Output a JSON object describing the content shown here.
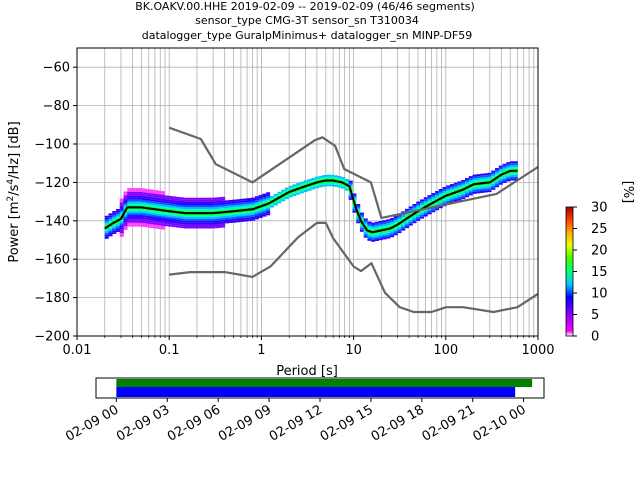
{
  "title": {
    "line1": "BK.OAKV.00.HHE   2019-02-09 -- 2019-02-09  (46/46 segments)",
    "line2": "sensor_type CMG-3T sensor_sn T310034",
    "line3": "datalogger_type GuralpMinimus+ datalogger_sn MINP-DF59"
  },
  "colors": {
    "mean": "#000000",
    "noise_models": "#666666",
    "grid": "#b0b0b0",
    "coverage_all": "#008000",
    "coverage_used": "#0000ff"
  },
  "chart_data": [
    {
      "type": "heatmap",
      "subtype": "probabilistic power spectral density",
      "xlabel": "Period [s]",
      "ylabel": "Power [m^2/s^4/Hz] [dB]",
      "xscale": "log",
      "xlim": [
        0.01,
        1000
      ],
      "ylim": [
        -200,
        -50
      ],
      "x_ticks": [
        0.01,
        0.1,
        1,
        10,
        100,
        1000
      ],
      "x_tick_labels": [
        "0.01",
        "0.1",
        "1",
        "10",
        "100",
        "1000"
      ],
      "y_ticks": [
        -200,
        -180,
        -160,
        -140,
        -120,
        -100,
        -80,
        -60
      ],
      "y_tick_labels": [
        "−200",
        "−180",
        "−160",
        "−140",
        "−120",
        "−100",
        "−80",
        "−60"
      ],
      "grid": true,
      "colorbar": {
        "label": "[%]",
        "range": [
          0,
          30
        ],
        "ticks": [
          0,
          5,
          10,
          15,
          20,
          25,
          30
        ],
        "tick_labels": [
          "0",
          "5",
          "10",
          "15",
          "20",
          "25",
          "30"
        ],
        "colormap": "pqlx"
      },
      "series": [
        {
          "name": "mean",
          "x": [
            0.02,
            0.025,
            0.03,
            0.035,
            0.05,
            0.07,
            0.1,
            0.15,
            0.2,
            0.3,
            0.5,
            0.8,
            1.2,
            2,
            3,
            4,
            5,
            6,
            7.5,
            9,
            10.5,
            12,
            14,
            16,
            20,
            25,
            30,
            40,
            50,
            70,
            100,
            150,
            200,
            300,
            400,
            500,
            600
          ],
          "y": [
            -144,
            -141,
            -139,
            -133,
            -133,
            -134,
            -135,
            -136,
            -136,
            -136,
            -135,
            -134,
            -131,
            -125,
            -122,
            -120,
            -119,
            -119,
            -120,
            -122,
            -133,
            -140,
            -145,
            -146,
            -145,
            -144,
            -142,
            -138,
            -135,
            -131,
            -127,
            -124,
            -121,
            -120,
            -116,
            -114,
            -114
          ]
        },
        {
          "name": "high noise model",
          "x": [
            0.1,
            0.22,
            0.32,
            0.8,
            3.8,
            4.6,
            6.3,
            7.9,
            15.4,
            20,
            354.8,
            1000
          ],
          "y": [
            -91.5,
            -97.4,
            -110.5,
            -120,
            -98,
            -96.5,
            -101,
            -113,
            -120,
            -138.5,
            -126,
            -112
          ]
        },
        {
          "name": "low noise model",
          "x": [
            0.1,
            0.17,
            0.4,
            0.8,
            1.26,
            2.5,
            4,
            5,
            6,
            10,
            12,
            15.6,
            21.9,
            31.6,
            45,
            70,
            101,
            154,
            328,
            600,
            1000
          ],
          "y": [
            -168,
            -166.7,
            -166.7,
            -169.2,
            -163.7,
            -148.6,
            -141.1,
            -141.1,
            -149,
            -163.8,
            -166.2,
            -162.1,
            -177.5,
            -185,
            -187.5,
            -187.5,
            -185,
            -185,
            -187.5,
            -185,
            -178
          ]
        }
      ]
    },
    {
      "type": "timeline",
      "description": "data coverage",
      "x_tick_labels": [
        "02-09 00",
        "02-09 03",
        "02-09 06",
        "02-09 09",
        "02-09 12",
        "02-09 15",
        "02-09 18",
        "02-09 21",
        "02-10 00"
      ],
      "x_ticks_hours": [
        0,
        3,
        6,
        9,
        12,
        15,
        18,
        21,
        24
      ],
      "xlim_hours": [
        -1.2,
        25.2
      ],
      "bars": [
        {
          "start_hours": 0,
          "end_hours": 24.5
        },
        {
          "start_hours": 0,
          "end_hours": 23.5
        }
      ]
    }
  ]
}
